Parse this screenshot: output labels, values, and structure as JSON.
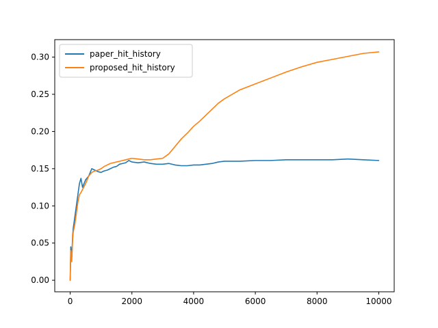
{
  "chart_data": {
    "type": "line",
    "title": "",
    "xlabel": "",
    "ylabel": "",
    "xlim": [
      -500,
      10500
    ],
    "ylim": [
      -0.0155,
      0.3235
    ],
    "x_ticks": [
      0,
      2000,
      4000,
      6000,
      8000,
      10000
    ],
    "x_tick_labels": [
      "0",
      "2000",
      "4000",
      "6000",
      "8000",
      "10000"
    ],
    "y_ticks": [
      0.0,
      0.05,
      0.1,
      0.15,
      0.2,
      0.25,
      0.3
    ],
    "y_tick_labels": [
      "0.00",
      "0.05",
      "0.10",
      "0.15",
      "0.20",
      "0.25",
      "0.30"
    ],
    "grid": false,
    "legend_position": "top-left",
    "series": [
      {
        "name": "paper_hit_history",
        "color": "#1f77b4",
        "x": [
          0,
          20,
          50,
          80,
          100,
          150,
          200,
          250,
          300,
          350,
          400,
          500,
          600,
          700,
          800,
          900,
          1000,
          1100,
          1200,
          1300,
          1400,
          1500,
          1600,
          1700,
          1800,
          1900,
          2000,
          2200,
          2400,
          2600,
          2800,
          3000,
          3200,
          3400,
          3600,
          3800,
          4000,
          4200,
          4400,
          4600,
          4800,
          5000,
          5500,
          6000,
          6500,
          7000,
          7500,
          8000,
          8500,
          9000,
          9500,
          10000
        ],
        "y": [
          0.0,
          0.045,
          0.03,
          0.06,
          0.07,
          0.085,
          0.1,
          0.115,
          0.13,
          0.137,
          0.125,
          0.135,
          0.14,
          0.15,
          0.148,
          0.146,
          0.145,
          0.147,
          0.148,
          0.15,
          0.152,
          0.153,
          0.156,
          0.157,
          0.158,
          0.161,
          0.159,
          0.158,
          0.159,
          0.157,
          0.156,
          0.156,
          0.157,
          0.155,
          0.154,
          0.154,
          0.155,
          0.155,
          0.156,
          0.157,
          0.159,
          0.16,
          0.16,
          0.161,
          0.161,
          0.162,
          0.162,
          0.162,
          0.162,
          0.163,
          0.162,
          0.161
        ]
      },
      {
        "name": "proposed_hit_history",
        "color": "#ff7f0e",
        "x": [
          0,
          20,
          50,
          80,
          100,
          150,
          200,
          250,
          300,
          350,
          400,
          500,
          600,
          700,
          800,
          900,
          1000,
          1100,
          1200,
          1300,
          1400,
          1500,
          1600,
          1700,
          1800,
          1900,
          2000,
          2200,
          2400,
          2600,
          2800,
          3000,
          3200,
          3400,
          3600,
          3800,
          4000,
          4200,
          4400,
          4600,
          4800,
          5000,
          5500,
          6000,
          6500,
          7000,
          7500,
          8000,
          8500,
          9000,
          9500,
          10000
        ],
        "y": [
          0.0,
          0.04,
          0.025,
          0.055,
          0.065,
          0.075,
          0.09,
          0.105,
          0.115,
          0.118,
          0.122,
          0.13,
          0.14,
          0.145,
          0.147,
          0.148,
          0.15,
          0.153,
          0.155,
          0.157,
          0.158,
          0.159,
          0.16,
          0.161,
          0.162,
          0.163,
          0.164,
          0.163,
          0.162,
          0.162,
          0.163,
          0.164,
          0.17,
          0.18,
          0.19,
          0.198,
          0.207,
          0.214,
          0.222,
          0.23,
          0.238,
          0.244,
          0.256,
          0.264,
          0.272,
          0.28,
          0.287,
          0.293,
          0.297,
          0.301,
          0.305,
          0.307
        ]
      }
    ]
  }
}
